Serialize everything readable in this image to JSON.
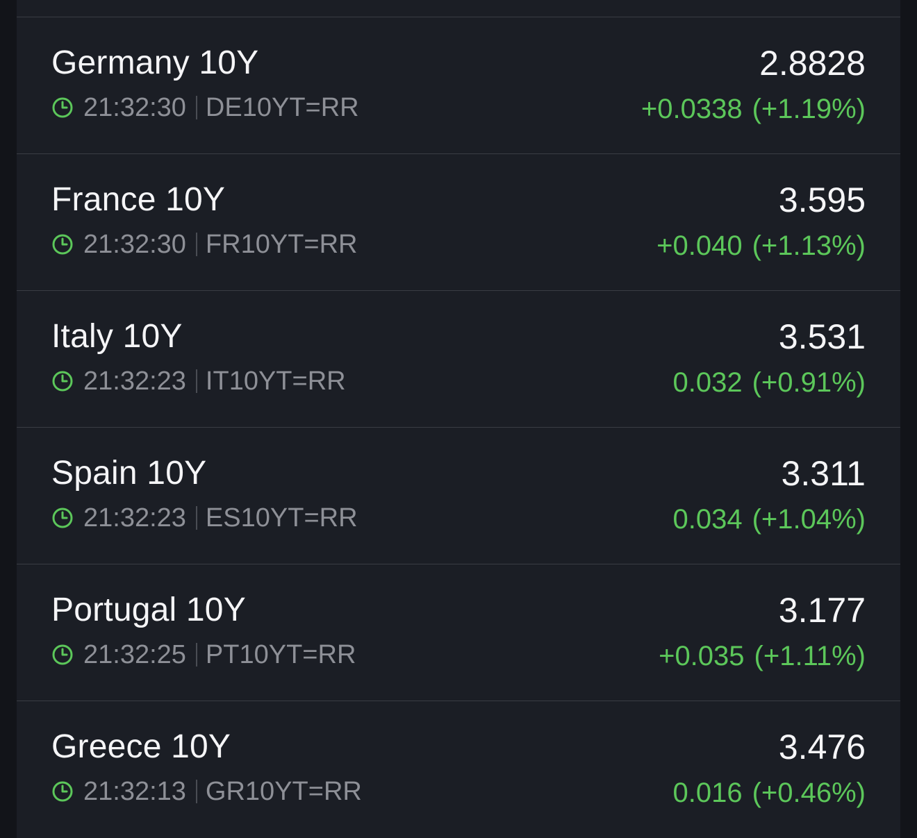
{
  "colors": {
    "background": "#1b1e25",
    "positive": "#5cc75a",
    "text_primary": "#f5f5f7",
    "text_secondary": "#8e9097"
  },
  "quotes": [
    {
      "name": "Germany 10Y",
      "time": "21:32:30",
      "ric": "DE10YT=RR",
      "price": "2.8828",
      "change": "+0.0338",
      "change_pct": "(+1.19%)",
      "icon": "clock-icon"
    },
    {
      "name": "France 10Y",
      "time": "21:32:30",
      "ric": "FR10YT=RR",
      "price": "3.595",
      "change": "+0.040",
      "change_pct": "(+1.13%)",
      "icon": "clock-icon"
    },
    {
      "name": "Italy 10Y",
      "time": "21:32:23",
      "ric": "IT10YT=RR",
      "price": "3.531",
      "change": "0.032",
      "change_pct": "(+0.91%)",
      "icon": "clock-icon"
    },
    {
      "name": "Spain 10Y",
      "time": "21:32:23",
      "ric": "ES10YT=RR",
      "price": "3.311",
      "change": "0.034",
      "change_pct": "(+1.04%)",
      "icon": "clock-icon"
    },
    {
      "name": "Portugal 10Y",
      "time": "21:32:25",
      "ric": "PT10YT=RR",
      "price": "3.177",
      "change": "+0.035",
      "change_pct": "(+1.11%)",
      "icon": "clock-icon"
    },
    {
      "name": "Greece 10Y",
      "time": "21:32:13",
      "ric": "GR10YT=RR",
      "price": "3.476",
      "change": "0.016",
      "change_pct": "(+0.46%)",
      "icon": "clock-icon"
    }
  ]
}
